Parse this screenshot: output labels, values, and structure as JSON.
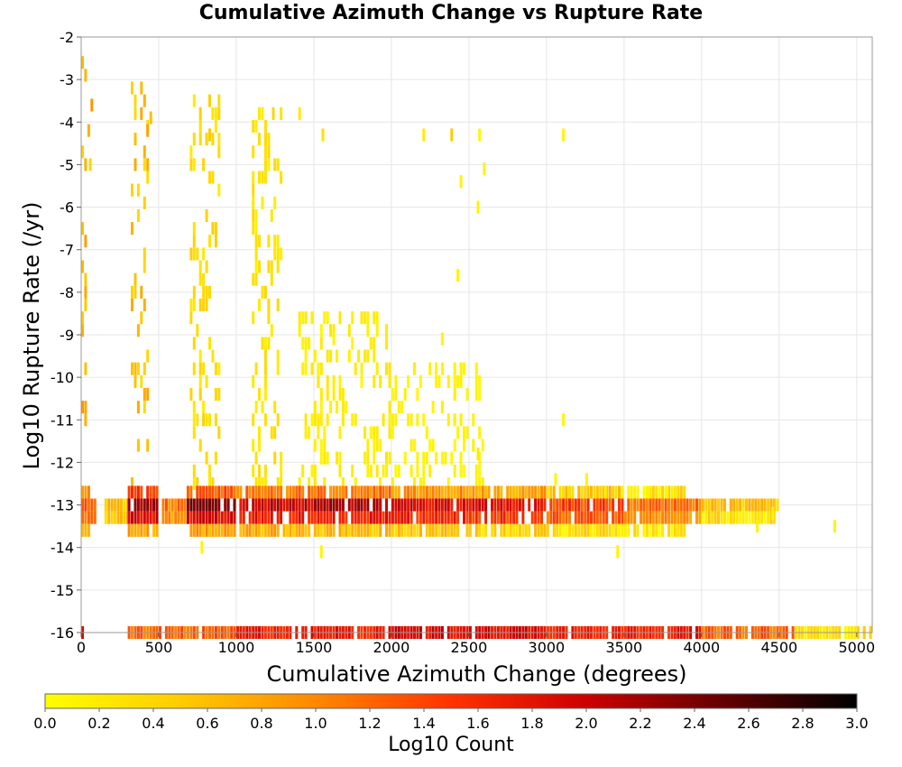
{
  "chart_data": {
    "type": "heatmap",
    "title": "Cumulative Azimuth Change vs Rupture Rate",
    "xlabel": "Cumulative Azimuth Change (degrees)",
    "ylabel": "Log10 Rupture Rate (/yr)",
    "xlim": [
      0,
      5100
    ],
    "ylim": [
      -16,
      -2
    ],
    "x_ticks": [
      0,
      500,
      1000,
      1500,
      2000,
      2500,
      3000,
      3500,
      4000,
      4500,
      5000
    ],
    "y_ticks": [
      -2,
      -3,
      -4,
      -5,
      -6,
      -7,
      -8,
      -9,
      -10,
      -11,
      -12,
      -13,
      -14,
      -15,
      -16
    ],
    "grid": true,
    "bin_width_x": 20,
    "bin_height_y": 0.3,
    "colorscale": [
      "#ffff00",
      "#ffcc00",
      "#ff8800",
      "#ff3300",
      "#cc0000",
      "#660000",
      "#000000"
    ],
    "colorbar": {
      "label": "Log10 Count",
      "range": [
        0.0,
        3.0
      ],
      "ticks": [
        "0.0",
        "0.2",
        "0.4",
        "0.6",
        "0.8",
        "1.0",
        "1.2",
        "1.4",
        "1.6",
        "1.8",
        "2.0",
        "2.2",
        "2.4",
        "2.6",
        "2.8",
        "3.0"
      ]
    },
    "bands": [
      {
        "y": -13.0,
        "segments": [
          [
            0,
            100,
            1.3
          ],
          [
            150,
            300,
            0.5
          ],
          [
            300,
            500,
            2.2
          ],
          [
            520,
            680,
            1.1
          ],
          [
            680,
            1000,
            2.3
          ],
          [
            1000,
            1500,
            2.0
          ],
          [
            1500,
            2000,
            2.1
          ],
          [
            2000,
            2500,
            1.9
          ],
          [
            2500,
            3000,
            1.8
          ],
          [
            3000,
            3500,
            1.4
          ],
          [
            3500,
            4000,
            1.1
          ],
          [
            4000,
            4500,
            0.5
          ]
        ]
      },
      {
        "y": -13.3,
        "segments": [
          [
            0,
            100,
            1.0
          ],
          [
            150,
            300,
            0.5
          ],
          [
            300,
            500,
            1.9
          ],
          [
            520,
            680,
            0.9
          ],
          [
            680,
            1000,
            1.9
          ],
          [
            1000,
            1500,
            1.7
          ],
          [
            1500,
            2000,
            1.7
          ],
          [
            2000,
            2500,
            1.6
          ],
          [
            2500,
            3000,
            1.5
          ],
          [
            3000,
            3500,
            1.2
          ],
          [
            3500,
            4000,
            0.9
          ],
          [
            4000,
            4500,
            0.3
          ]
        ]
      },
      {
        "y": -12.7,
        "segments": [
          [
            0,
            60,
            0.9
          ],
          [
            300,
            500,
            1.4
          ],
          [
            680,
            1000,
            1.3
          ],
          [
            1000,
            1500,
            1.1
          ],
          [
            1500,
            2000,
            1.1
          ],
          [
            2000,
            2500,
            0.9
          ],
          [
            2500,
            3000,
            0.8
          ],
          [
            3000,
            3500,
            0.5
          ],
          [
            3500,
            3900,
            0.3
          ]
        ]
      },
      {
        "y": -13.6,
        "segments": [
          [
            0,
            60,
            0.5
          ],
          [
            300,
            500,
            0.8
          ],
          [
            700,
            1000,
            0.8
          ],
          [
            1000,
            1500,
            0.7
          ],
          [
            1500,
            2000,
            0.6
          ],
          [
            2000,
            2500,
            0.5
          ],
          [
            2500,
            3000,
            0.4
          ],
          [
            3000,
            3500,
            0.3
          ],
          [
            3500,
            3900,
            0.2
          ]
        ]
      },
      {
        "y": -16.0,
        "segments": [
          [
            0,
            20,
            2.0
          ],
          [
            300,
            1000,
            1.2
          ],
          [
            1000,
            2000,
            1.7
          ],
          [
            2000,
            3000,
            1.9
          ],
          [
            3000,
            4000,
            1.7
          ],
          [
            4000,
            4600,
            1.2
          ],
          [
            4600,
            5100,
            0.3
          ]
        ]
      }
    ],
    "columns": [
      {
        "x": [
          0,
          30
        ],
        "y": [
          -12.5,
          -2.2
        ],
        "v": 0.6
      },
      {
        "x": [
          320,
          440
        ],
        "y": [
          -12.5,
          -3.0
        ],
        "v": 0.5
      },
      {
        "x": [
          700,
          900
        ],
        "y": [
          -12.5,
          -3.2
        ],
        "v": 0.3
      },
      {
        "x": [
          1100,
          1300
        ],
        "y": [
          -12.5,
          -3.5
        ],
        "v": 0.25
      },
      {
        "x": [
          1400,
          2000
        ],
        "y": [
          -12.5,
          -8.5
        ],
        "v": 0.15
      },
      {
        "x": [
          2000,
          2600
        ],
        "y": [
          -12.5,
          -9.5
        ],
        "v": 0.1
      }
    ],
    "scattered_bins": [
      [
        40,
        -4.2,
        0.7
      ],
      [
        60,
        -3.6,
        0.9
      ],
      [
        50,
        -5.0,
        0.4
      ],
      [
        440,
        -3.9,
        0.6
      ],
      [
        420,
        -4.2,
        0.8
      ],
      [
        820,
        -4.3,
        0.5
      ],
      [
        1230,
        -3.8,
        0.4
      ],
      [
        1400,
        -3.8,
        0.2
      ],
      [
        1550,
        -4.3,
        0.3
      ],
      [
        2200,
        -4.3,
        0.2
      ],
      [
        2380,
        -4.3,
        0.5
      ],
      [
        2560,
        -4.3,
        0.1
      ],
      [
        2590,
        -5.1,
        0.1
      ],
      [
        2440,
        -5.4,
        0.1
      ],
      [
        2550,
        -6.0,
        0.1
      ],
      [
        3100,
        -4.3,
        0.1
      ],
      [
        2420,
        -7.6,
        0.1
      ],
      [
        1620,
        -9.1,
        0.1
      ],
      [
        2320,
        -9.1,
        0.1
      ],
      [
        3100,
        -11.0,
        0.1
      ],
      [
        2550,
        -11.8,
        0.2
      ],
      [
        3050,
        -12.4,
        0.1
      ],
      [
        3250,
        -12.4,
        0.1
      ],
      [
        3370,
        -12.7,
        0.1
      ],
      [
        3480,
        -12.7,
        0.1
      ],
      [
        3650,
        -12.7,
        0.1
      ],
      [
        3770,
        -12.7,
        0.1
      ],
      [
        4260,
        -13.2,
        0.2
      ],
      [
        4350,
        -13.5,
        0.1
      ],
      [
        4450,
        -13.2,
        0.1
      ],
      [
        4850,
        -13.5,
        0.1
      ],
      [
        3450,
        -14.1,
        0.1
      ],
      [
        1540,
        -14.1,
        0.1
      ],
      [
        770,
        -14.0,
        0.1
      ]
    ]
  }
}
